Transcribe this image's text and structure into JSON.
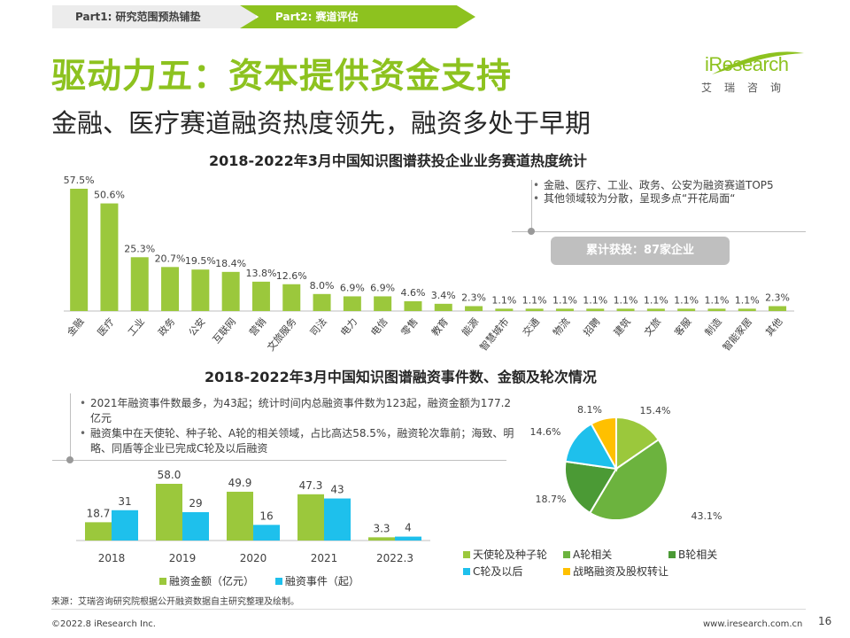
{
  "breadcrumb": {
    "part1": "Part1: 研究范围预热铺垫",
    "part2": "Part2: 赛道评估"
  },
  "title": "驱动力五：资本提供资金支持",
  "subtitle": "金融、医疗赛道融资热度领先，融资多处于早期",
  "logo": {
    "text": "iResearch",
    "sub": "艾瑞咨询"
  },
  "notes_top": [
    "金融、医疗、工业、政务、公安为融资赛道TOP5",
    "其他领域较为分散，呈现多点“开花局面“"
  ],
  "badge": "累计获投：87家企业",
  "notes_bottom": [
    "2021年融资事件数最多，为43起；统计时间内总融资事件数为123起，融资金额为177.2亿元",
    "融资集中在天使轮、种子轮、A轮的相关领域，占比高达58.5%，融资轮次靠前；海致、明略、同盾等企业已完成C轮及以后融资"
  ],
  "colors": {
    "green": "#9bc83c",
    "dark_green": "#5a9b2f",
    "cyan": "#1ec0ec",
    "blue": "#00b0f0",
    "yellow": "#ffc000",
    "accent": "#8dc21f"
  },
  "chart_data": [
    {
      "type": "bar",
      "title": "2018-2022年3月中国知识图谱获投企业业务赛道热度统计",
      "categories": [
        "金融",
        "医疗",
        "工业",
        "政务",
        "公安",
        "互联网",
        "营销",
        "文旅服务",
        "司法",
        "电力",
        "电信",
        "零售",
        "教育",
        "能源",
        "智慧城市",
        "交通",
        "物流",
        "招聘",
        "建筑",
        "文旅",
        "客服",
        "制造",
        "智能家居",
        "其他"
      ],
      "values": [
        57.5,
        50.6,
        25.3,
        20.7,
        19.5,
        18.4,
        13.8,
        12.6,
        8.0,
        6.9,
        6.9,
        4.6,
        3.4,
        2.3,
        1.1,
        1.1,
        1.1,
        1.1,
        1.1,
        1.1,
        1.1,
        1.1,
        1.1,
        2.3
      ],
      "value_labels": [
        "57.5%",
        "50.6%",
        "25.3%",
        "20.7%",
        "19.5%",
        "18.4%",
        "13.8%",
        "12.6%",
        "8.0%",
        "6.9%",
        "6.9%",
        "4.6%",
        "3.4%",
        "2.3%",
        "1.1%",
        "1.1%",
        "1.1%",
        "1.1%",
        "1.1%",
        "1.1%",
        "1.1%",
        "1.1%",
        "1.1%",
        "2.3%"
      ],
      "ylim": [
        0,
        60
      ],
      "color": "#9bc83c"
    },
    {
      "type": "bar",
      "title": "2018-2022年3月中国知识图谱融资事件数、金额及轮次情况",
      "categories": [
        "2018",
        "2019",
        "2020",
        "2021",
        "2022.3"
      ],
      "series": [
        {
          "name": "融资金额（亿元）",
          "values": [
            18.7,
            58.0,
            49.9,
            47.3,
            3.3
          ],
          "labels": [
            "18.7",
            "58.0",
            "49.9",
            "47.3",
            "3.3"
          ],
          "color": "#9bc83c"
        },
        {
          "name": "融资事件（起）",
          "values": [
            31,
            29,
            16,
            43,
            4
          ],
          "labels": [
            "31",
            "29",
            "16",
            "43",
            "4"
          ],
          "color": "#1ec0ec"
        }
      ],
      "ylim": [
        0,
        62
      ]
    },
    {
      "type": "pie",
      "labels": [
        "天使轮及种子轮",
        "A轮相关",
        "B轮相关",
        "C轮及以后",
        "战略融资及股权转让"
      ],
      "values": [
        15.4,
        43.1,
        18.7,
        14.6,
        8.1
      ],
      "value_labels": [
        "15.4%",
        "43.1%",
        "18.7%",
        "14.6%",
        "8.1%"
      ],
      "colors": [
        "#9bc83c",
        "#6cb33e",
        "#4b9a35",
        "#1ec0ec",
        "#ffc000"
      ]
    }
  ],
  "source": "来源：艾瑞咨询研究院根据公开融资数据自主研究整理及绘制。",
  "footer": {
    "copyright": "©2022.8 iResearch Inc.",
    "website": "www.iresearch.com.cn",
    "page": "16"
  }
}
